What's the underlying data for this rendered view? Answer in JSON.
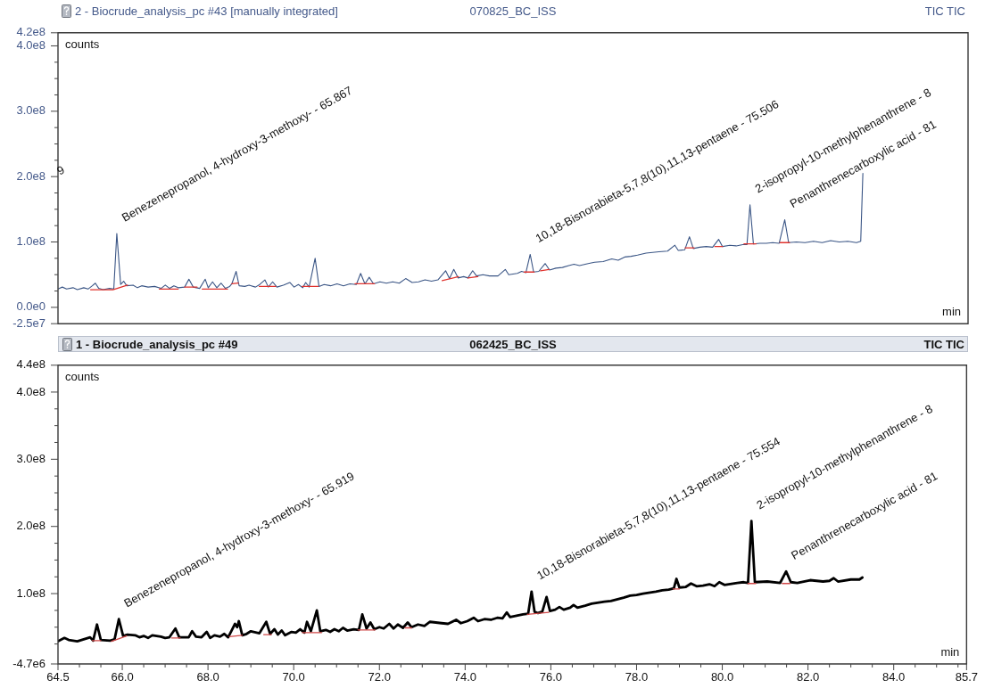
{
  "chart_data": [
    {
      "type": "line",
      "title": "2 - Biocrude_analysis_pc #43 [manually integrated]",
      "subtitle": "070825_BC_ISS",
      "ylabel": "counts",
      "xlabel": "min",
      "tick_labels": "y",
      "xlim": [
        64.5,
        85.7
      ],
      "ylim": [
        -25000000.0,
        420000000.0
      ],
      "yticks": [
        {
          "value": 420000000.0,
          "label": "4.2e8"
        },
        {
          "value": 400000000.0,
          "label": "4.0e8"
        },
        {
          "value": 375000000.0,
          "label": null
        },
        {
          "value": 350000000.0,
          "label": null
        },
        {
          "value": 325000000.0,
          "label": null
        },
        {
          "value": 300000000.0,
          "label": "3.0e8"
        },
        {
          "value": 275000000.0,
          "label": null
        },
        {
          "value": 250000000.0,
          "label": null
        },
        {
          "value": 225000000.0,
          "label": null
        },
        {
          "value": 200000000.0,
          "label": "2.0e8"
        },
        {
          "value": 175000000.0,
          "label": null
        },
        {
          "value": 150000000.0,
          "label": null
        },
        {
          "value": 125000000.0,
          "label": null
        },
        {
          "value": 100000000.0,
          "label": "1.0e8"
        },
        {
          "value": 75000000.0,
          "label": null
        },
        {
          "value": 50000000.0,
          "label": null
        },
        {
          "value": 25000000.0,
          "label": null
        },
        {
          "value": 0,
          "label": "0.0e0"
        },
        {
          "value": -25000000.0,
          "label": "-2.5e7"
        }
      ],
      "series": [
        {
          "color": "#3a5585",
          "x": [
            64.5,
            64.6,
            64.7,
            64.85,
            64.95,
            65.1,
            65.2,
            65.3,
            65.37,
            65.45,
            65.55,
            65.7,
            65.8,
            65.87,
            65.96,
            66.03,
            66.1,
            66.25,
            66.35,
            66.45,
            66.6,
            66.75,
            66.9,
            67.0,
            67.1,
            67.2,
            67.3,
            67.45,
            67.55,
            67.65,
            67.8,
            67.93,
            68.0,
            68.1,
            68.2,
            68.3,
            68.4,
            68.5,
            68.55,
            68.65,
            68.72,
            68.85,
            68.95,
            69.1,
            69.2,
            69.32,
            69.4,
            69.5,
            69.6,
            69.75,
            69.9,
            70.0,
            70.1,
            70.2,
            70.27,
            70.35,
            70.49,
            70.58,
            70.7,
            70.85,
            71.0,
            71.15,
            71.3,
            71.45,
            71.55,
            71.65,
            71.75,
            71.85,
            72.0,
            72.15,
            72.3,
            72.45,
            72.6,
            72.75,
            72.9,
            73.05,
            73.2,
            73.35,
            73.53,
            73.62,
            73.72,
            73.82,
            73.95,
            74.05,
            74.16,
            74.25,
            74.4,
            74.55,
            74.75,
            74.92,
            75.0,
            75.2,
            75.3,
            75.4,
            75.5,
            75.58,
            75.7,
            75.85,
            75.95,
            76.1,
            76.25,
            76.4,
            76.52,
            76.65,
            76.85,
            77.0,
            77.2,
            77.4,
            77.55,
            77.7,
            77.85,
            78.0,
            78.2,
            78.35,
            78.5,
            78.7,
            78.87,
            78.95,
            79.1,
            79.21,
            79.3,
            79.45,
            79.6,
            79.75,
            79.89,
            79.98,
            80.15,
            80.3,
            80.45,
            80.55,
            80.62,
            80.7,
            80.85,
            81.0,
            81.15,
            81.3,
            81.43,
            81.52,
            81.7,
            81.9,
            82.1,
            82.3,
            82.5,
            82.7,
            82.9,
            83.1,
            83.2,
            83.25
          ],
          "values": [
            28000000.0,
            31000000.0,
            28000000.0,
            30000000.0,
            27000000.0,
            30000000.0,
            28000000.0,
            33000000.0,
            37000000.0,
            29000000.0,
            27000000.0,
            29000000.0,
            28000000.0,
            113000000.0,
            35000000.0,
            40000000.0,
            33000000.0,
            34000000.0,
            30000000.0,
            33000000.0,
            31000000.0,
            32000000.0,
            29000000.0,
            34000000.0,
            29000000.0,
            33000000.0,
            30000000.0,
            31000000.0,
            43000000.0,
            31000000.0,
            29000000.0,
            43000000.0,
            30000000.0,
            39000000.0,
            30000000.0,
            37000000.0,
            29000000.0,
            32000000.0,
            36000000.0,
            55000000.0,
            33000000.0,
            32000000.0,
            34000000.0,
            31000000.0,
            35000000.0,
            42000000.0,
            31000000.0,
            39000000.0,
            31000000.0,
            34000000.0,
            38000000.0,
            31000000.0,
            35000000.0,
            30000000.0,
            38000000.0,
            31000000.0,
            75000000.0,
            32000000.0,
            35000000.0,
            33000000.0,
            36000000.0,
            33000000.0,
            36000000.0,
            35000000.0,
            52000000.0,
            36000000.0,
            46000000.0,
            36000000.0,
            39000000.0,
            37000000.0,
            39000000.0,
            37000000.0,
            44000000.0,
            38000000.0,
            39000000.0,
            42000000.0,
            40000000.0,
            42000000.0,
            56000000.0,
            44000000.0,
            58000000.0,
            45000000.0,
            47000000.0,
            45000000.0,
            56000000.0,
            48000000.0,
            50000000.0,
            48000000.0,
            48000000.0,
            58000000.0,
            50000000.0,
            52000000.0,
            55000000.0,
            53000000.0,
            81000000.0,
            54000000.0,
            55000000.0,
            67000000.0,
            57000000.0,
            60000000.0,
            61000000.0,
            64000000.0,
            66000000.0,
            64000000.0,
            67000000.0,
            69000000.0,
            70000000.0,
            74000000.0,
            72000000.0,
            77000000.0,
            78000000.0,
            80000000.0,
            83000000.0,
            84000000.0,
            85000000.0,
            86000000.0,
            95000000.0,
            87000000.0,
            88000000.0,
            108000000.0,
            90000000.0,
            92000000.0,
            93000000.0,
            92000000.0,
            104000000.0,
            93000000.0,
            95000000.0,
            94000000.0,
            96000000.0,
            96000000.0,
            157000000.0,
            97000000.0,
            98000000.0,
            98000000.0,
            99000000.0,
            98000000.0,
            134000000.0,
            99000000.0,
            100000000.0,
            99000000.0,
            101000000.0,
            99000000.0,
            102000000.0,
            100000000.0,
            101000000.0,
            99000000.0,
            101000000.0,
            205000000.0
          ]
        },
        {
          "color": "#e0322d",
          "x": [
            65.26,
            65.78,
            66.12,
            null,
            66.86,
            67.3,
            null,
            67.45,
            67.74,
            null,
            67.86,
            68.45,
            null,
            68.55,
            68.7,
            null,
            69.19,
            69.57,
            null,
            70.19,
            70.56,
            null,
            71.42,
            71.87,
            null,
            73.45,
            73.83,
            null,
            74.05,
            74.28,
            null,
            75.36,
            75.59,
            null,
            75.74,
            75.94,
            null,
            79.11,
            79.32,
            null,
            79.8,
            79.98,
            null,
            80.48,
            80.76,
            null,
            81.32,
            81.54
          ],
          "values": [
            27000000.0,
            27000000.0,
            34000000.0,
            null,
            28000000.0,
            28000000.0,
            null,
            31000000.0,
            31000000.0,
            null,
            28000000.0,
            28000000.0,
            null,
            36000000.0,
            37000000.0,
            null,
            32000000.0,
            32000000.0,
            null,
            32000000.0,
            32000000.0,
            null,
            36000000.0,
            36000000.0,
            null,
            41000000.0,
            47000000.0,
            null,
            45000000.0,
            47000000.0,
            null,
            54000000.0,
            54000000.0,
            null,
            56000000.0,
            58000000.0,
            null,
            91000000.0,
            91000000.0,
            null,
            93000000.0,
            93000000.0,
            null,
            97000000.0,
            97000000.0,
            null,
            99000000.0,
            99000000.0
          ]
        }
      ],
      "annotations": [
        {
          "text": "Benezenepropanol, 4-hydroxy-3-methoxy- - 65.867",
          "x": 65.867,
          "y": 113000000.0
        },
        {
          "text": "10,18-Bisnorabieta-5,7,8(10),11,13-pentaene - 75.506",
          "x": 75.506,
          "y": 81000000.0
        },
        {
          "text": "2-isopropyl-10-methylphenanthrene - 8",
          "x": 80.62,
          "y": 157000000.0
        },
        {
          "text": "Penanthrenecarboxylic acid - 81",
          "x": 81.43,
          "y": 134000000.0
        },
        "TIC TIC",
        "9"
      ]
    },
    {
      "type": "line",
      "title": "1 - Biocrude_analysis_pc #49",
      "subtitle": "062425_BC_ISS",
      "ylabel": "counts",
      "xlabel": "min",
      "xlim": [
        64.5,
        85.7
      ],
      "ylim": [
        -4700000.0,
        440000000.0
      ],
      "xticks": [
        64.5,
        {
          "value": 65,
          "label": null
        },
        {
          "value": 65.5,
          "label": null
        },
        {
          "value": 66,
          "label": "66.0"
        },
        {
          "value": 66.5,
          "label": null
        },
        {
          "value": 67,
          "label": null
        },
        {
          "value": 67.5,
          "label": null
        },
        {
          "value": 68,
          "label": "68.0"
        },
        {
          "value": 68.5,
          "label": null
        },
        {
          "value": 69,
          "label": null
        },
        {
          "value": 69.5,
          "label": null
        },
        {
          "value": 70,
          "label": "70.0"
        },
        {
          "value": 70.5,
          "label": null
        },
        {
          "value": 71,
          "label": null
        },
        {
          "value": 71.5,
          "label": null
        },
        {
          "value": 72,
          "label": "72.0"
        },
        {
          "value": 72.5,
          "label": null
        },
        {
          "value": 73,
          "label": null
        },
        {
          "value": 73.5,
          "label": null
        },
        {
          "value": 74,
          "label": "74.0"
        },
        {
          "value": 74.5,
          "label": null
        },
        {
          "value": 75,
          "label": null
        },
        {
          "value": 75.5,
          "label": null
        },
        {
          "value": 76,
          "label": "76.0"
        },
        {
          "value": 76.5,
          "label": null
        },
        {
          "value": 77,
          "label": null
        },
        {
          "value": 77.5,
          "label": null
        },
        {
          "value": 78,
          "label": "78.0"
        },
        {
          "value": 78.5,
          "label": null
        },
        {
          "value": 79,
          "label": null
        },
        {
          "value": 79.5,
          "label": null
        },
        {
          "value": 80,
          "label": "80.0"
        },
        {
          "value": 80.5,
          "label": null
        },
        {
          "value": 81,
          "label": null
        },
        {
          "value": 81.5,
          "label": null
        },
        {
          "value": 82,
          "label": "82.0"
        },
        {
          "value": 82.5,
          "label": null
        },
        {
          "value": 83,
          "label": null
        },
        {
          "value": 83.5,
          "label": null
        },
        {
          "value": 84,
          "label": "84.0"
        },
        {
          "value": 84.5,
          "label": null
        },
        {
          "value": 85,
          "label": null
        },
        {
          "value": 85.5,
          "label": null
        },
        85.7
      ],
      "yticks": [
        {
          "value": 440000000.0,
          "label": "4.4e8"
        },
        {
          "value": 400000000.0,
          "label": "4.0e8"
        },
        {
          "value": 375000000.0,
          "label": null
        },
        {
          "value": 350000000.0,
          "label": null
        },
        {
          "value": 325000000.0,
          "label": null
        },
        {
          "value": 300000000.0,
          "label": "3.0e8"
        },
        {
          "value": 275000000.0,
          "label": null
        },
        {
          "value": 250000000.0,
          "label": null
        },
        {
          "value": 225000000.0,
          "label": null
        },
        {
          "value": 200000000.0,
          "label": "2.0e8"
        },
        {
          "value": 175000000.0,
          "label": null
        },
        {
          "value": 150000000.0,
          "label": null
        },
        {
          "value": 125000000.0,
          "label": null
        },
        {
          "value": 100000000.0,
          "label": "1.0e8"
        },
        {
          "value": 75000000.0,
          "label": null
        },
        {
          "value": 50000000.0,
          "label": null
        },
        {
          "value": 25000000.0,
          "label": null
        },
        {
          "value": -4700000.0,
          "label": "-4.7e6"
        }
      ],
      "series": [
        {
          "color": "#000000",
          "x": [
            64.5,
            64.65,
            64.75,
            64.95,
            65.05,
            65.25,
            65.32,
            65.41,
            65.5,
            65.72,
            65.82,
            65.92,
            66.02,
            66.12,
            66.3,
            66.4,
            66.5,
            66.6,
            66.7,
            66.9,
            67.0,
            67.1,
            67.24,
            67.33,
            67.55,
            67.63,
            67.72,
            67.85,
            67.97,
            68.05,
            68.15,
            68.28,
            68.38,
            68.47,
            68.55,
            68.63,
            68.68,
            68.72,
            68.8,
            68.9,
            69.0,
            69.2,
            69.36,
            69.45,
            69.55,
            69.63,
            69.72,
            69.8,
            69.95,
            70.05,
            70.15,
            70.25,
            70.31,
            70.4,
            70.54,
            70.62,
            70.75,
            70.85,
            70.95,
            71.05,
            71.15,
            71.25,
            71.4,
            71.52,
            71.6,
            71.7,
            71.79,
            71.88,
            72.0,
            72.1,
            72.23,
            72.33,
            72.43,
            72.55,
            72.66,
            72.75,
            72.9,
            73.05,
            73.18,
            73.45,
            73.6,
            73.79,
            73.9,
            74.05,
            74.2,
            74.3,
            74.45,
            74.6,
            74.75,
            74.87,
            74.97,
            75.05,
            75.2,
            75.35,
            75.47,
            75.55,
            75.62,
            75.7,
            75.8,
            75.9,
            75.98,
            76.1,
            76.2,
            76.3,
            76.45,
            76.53,
            76.62,
            76.8,
            76.95,
            77.25,
            77.4,
            77.7,
            77.85,
            78.0,
            78.15,
            78.45,
            78.6,
            78.75,
            78.87,
            78.93,
            79.0,
            79.15,
            79.27,
            79.4,
            79.55,
            79.7,
            79.82,
            79.93,
            80.05,
            80.35,
            80.5,
            80.6,
            80.68,
            80.76,
            81.05,
            81.35,
            81.49,
            81.6,
            81.75,
            81.9,
            82.05,
            82.35,
            82.5,
            82.6,
            82.7,
            83.0,
            83.2,
            83.27
          ],
          "values": [
            29000000.0,
            34000000.0,
            31000000.0,
            29000000.0,
            31000000.0,
            35000000.0,
            30000000.0,
            54000000.0,
            31000000.0,
            30000000.0,
            32000000.0,
            62000000.0,
            37000000.0,
            39000000.0,
            38000000.0,
            35000000.0,
            37000000.0,
            34000000.0,
            38000000.0,
            36000000.0,
            34000000.0,
            35000000.0,
            48000000.0,
            35000000.0,
            35000000.0,
            44000000.0,
            36000000.0,
            35000000.0,
            43000000.0,
            34000000.0,
            38000000.0,
            36000000.0,
            40000000.0,
            35000000.0,
            45000000.0,
            55000000.0,
            50000000.0,
            59000000.0,
            38000000.0,
            40000000.0,
            44000000.0,
            41000000.0,
            58000000.0,
            40000000.0,
            47000000.0,
            39000000.0,
            45000000.0,
            38000000.0,
            43000000.0,
            42000000.0,
            47000000.0,
            42000000.0,
            58000000.0,
            44000000.0,
            75000000.0,
            44000000.0,
            46000000.0,
            43000000.0,
            47000000.0,
            44000000.0,
            49000000.0,
            45000000.0,
            47000000.0,
            46000000.0,
            69000000.0,
            48000000.0,
            57000000.0,
            47000000.0,
            50000000.0,
            48000000.0,
            55000000.0,
            48000000.0,
            54000000.0,
            49000000.0,
            57000000.0,
            50000000.0,
            54000000.0,
            52000000.0,
            58000000.0,
            56000000.0,
            55000000.0,
            61000000.0,
            56000000.0,
            59000000.0,
            64000000.0,
            59000000.0,
            62000000.0,
            61000000.0,
            64000000.0,
            63000000.0,
            72000000.0,
            65000000.0,
            67000000.0,
            69000000.0,
            70000000.0,
            103000000.0,
            73000000.0,
            71000000.0,
            73000000.0,
            95000000.0,
            74000000.0,
            76000000.0,
            80000000.0,
            76000000.0,
            79000000.0,
            83000000.0,
            79000000.0,
            82000000.0,
            85000000.0,
            88000000.0,
            89000000.0,
            94000000.0,
            97000000.0,
            98000000.0,
            100000000.0,
            103000000.0,
            105000000.0,
            106000000.0,
            108000000.0,
            122000000.0,
            109000000.0,
            110000000.0,
            115000000.0,
            111000000.0,
            112000000.0,
            114000000.0,
            111000000.0,
            117000000.0,
            113000000.0,
            116000000.0,
            117000000.0,
            116000000.0,
            208000000.0,
            117000000.0,
            118000000.0,
            116000000.0,
            133000000.0,
            117000000.0,
            116000000.0,
            118000000.0,
            120000000.0,
            118000000.0,
            119000000.0,
            123000000.0,
            118000000.0,
            121000000.0,
            121000000.0,
            124000000.0
          ]
        },
        {
          "color": "#d04848",
          "x": [
            65.3,
            65.5,
            null,
            65.75,
            66.1,
            null,
            67.15,
            67.35,
            null,
            68.5,
            68.8,
            null,
            69.3,
            69.48,
            null,
            70.2,
            70.65,
            null,
            71.5,
            71.9,
            null,
            72.6,
            72.75,
            null,
            75.45,
            75.95,
            null,
            78.85,
            79.0,
            null,
            80.6,
            80.78,
            null,
            81.4,
            81.58
          ],
          "values": [
            30000000.0,
            30000000.0,
            null,
            29000000.0,
            37000000.0,
            null,
            34000000.0,
            34000000.0,
            null,
            36000000.0,
            38000000.0,
            null,
            39000000.0,
            39000000.0,
            null,
            42000000.0,
            42000000.0,
            null,
            46000000.0,
            46000000.0,
            null,
            49000000.0,
            49000000.0,
            null,
            69000000.0,
            72000000.0,
            null,
            107000000.0,
            107000000.0,
            null,
            115000000.0,
            115000000.0,
            null,
            115000000.0,
            115000000.0
          ]
        }
      ],
      "annotations": [
        {
          "text": "Benezenepropanol, 4-hydroxy-3-methoxy- - 65.919",
          "x": 65.919,
          "y": 62000000.0
        },
        {
          "text": "10,18-Bisnorabieta-5,7,8(10),11,13-pentaene - 75.554",
          "x": 75.554,
          "y": 103000000.0
        },
        {
          "text": "2-isopropyl-10-methylphenanthrene - 8",
          "x": 80.68,
          "y": 208000000.0
        },
        {
          "text": "Penanthrenecarboxylic acid - 81",
          "x": 81.49,
          "y": 133000000.0
        },
        "TIC TIC"
      ]
    }
  ]
}
